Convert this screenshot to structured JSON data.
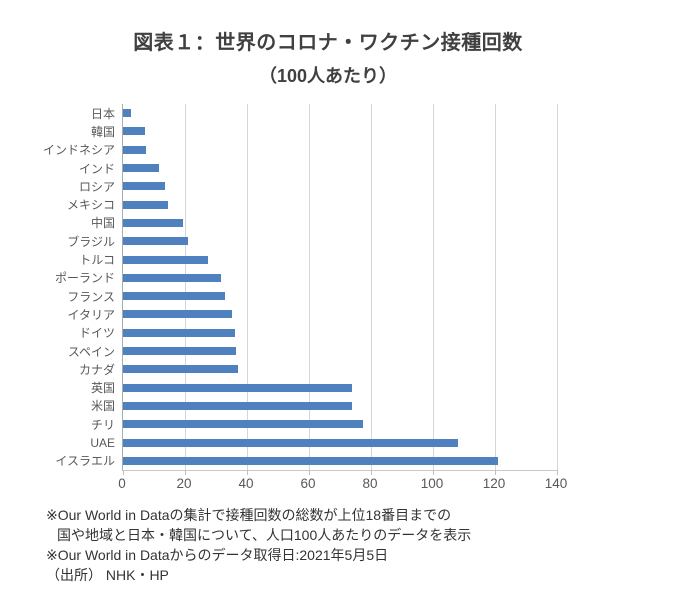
{
  "title": "図表１：世界のコロナ・ワクチン接種回数",
  "subtitle": "（100人あたり）",
  "chart_data": {
    "type": "bar",
    "orientation": "horizontal",
    "title": "図表１：世界のコロナ・ワクチン接種回数（100人あたり）",
    "xlabel": "",
    "ylabel": "",
    "xlim": [
      0,
      140
    ],
    "xticks": [
      0,
      20,
      40,
      60,
      80,
      100,
      120,
      140
    ],
    "grid": "vertical-gridlines-on",
    "legend": "none",
    "bar_color": "#4E81BD",
    "categories": [
      "日本",
      "韓国",
      "インドネシア",
      "インド",
      "ロシア",
      "メキシコ",
      "中国",
      "ブラジル",
      "トルコ",
      "ポーランド",
      "フランス",
      "イタリア",
      "ドイツ",
      "スペイン",
      "カナダ",
      "英国",
      "米国",
      "チリ",
      "UAE",
      "イスラエル"
    ],
    "values": [
      2.5,
      7,
      7.5,
      11.5,
      13.5,
      14.5,
      19.5,
      21,
      27.5,
      31.5,
      33,
      35,
      36,
      36.5,
      37,
      74,
      74,
      77.5,
      108,
      121
    ]
  },
  "footnotes": [
    "※Our World in Dataの集計で接種回数の総数が上位18番目までの",
    "国や地域と日本・韓国について、人口100人あたりのデータを表示",
    "※Our World in Dataからのデータ取得日:2021年5月5日",
    "（出所） NHK・HP"
  ],
  "colors": {
    "bar": "#4E81BD",
    "title_text": "#404040",
    "axis_label_text": "#595959",
    "footnote_text": "#333333",
    "gridline": "#D6D6D6",
    "axis_line": "#ABABAB"
  }
}
